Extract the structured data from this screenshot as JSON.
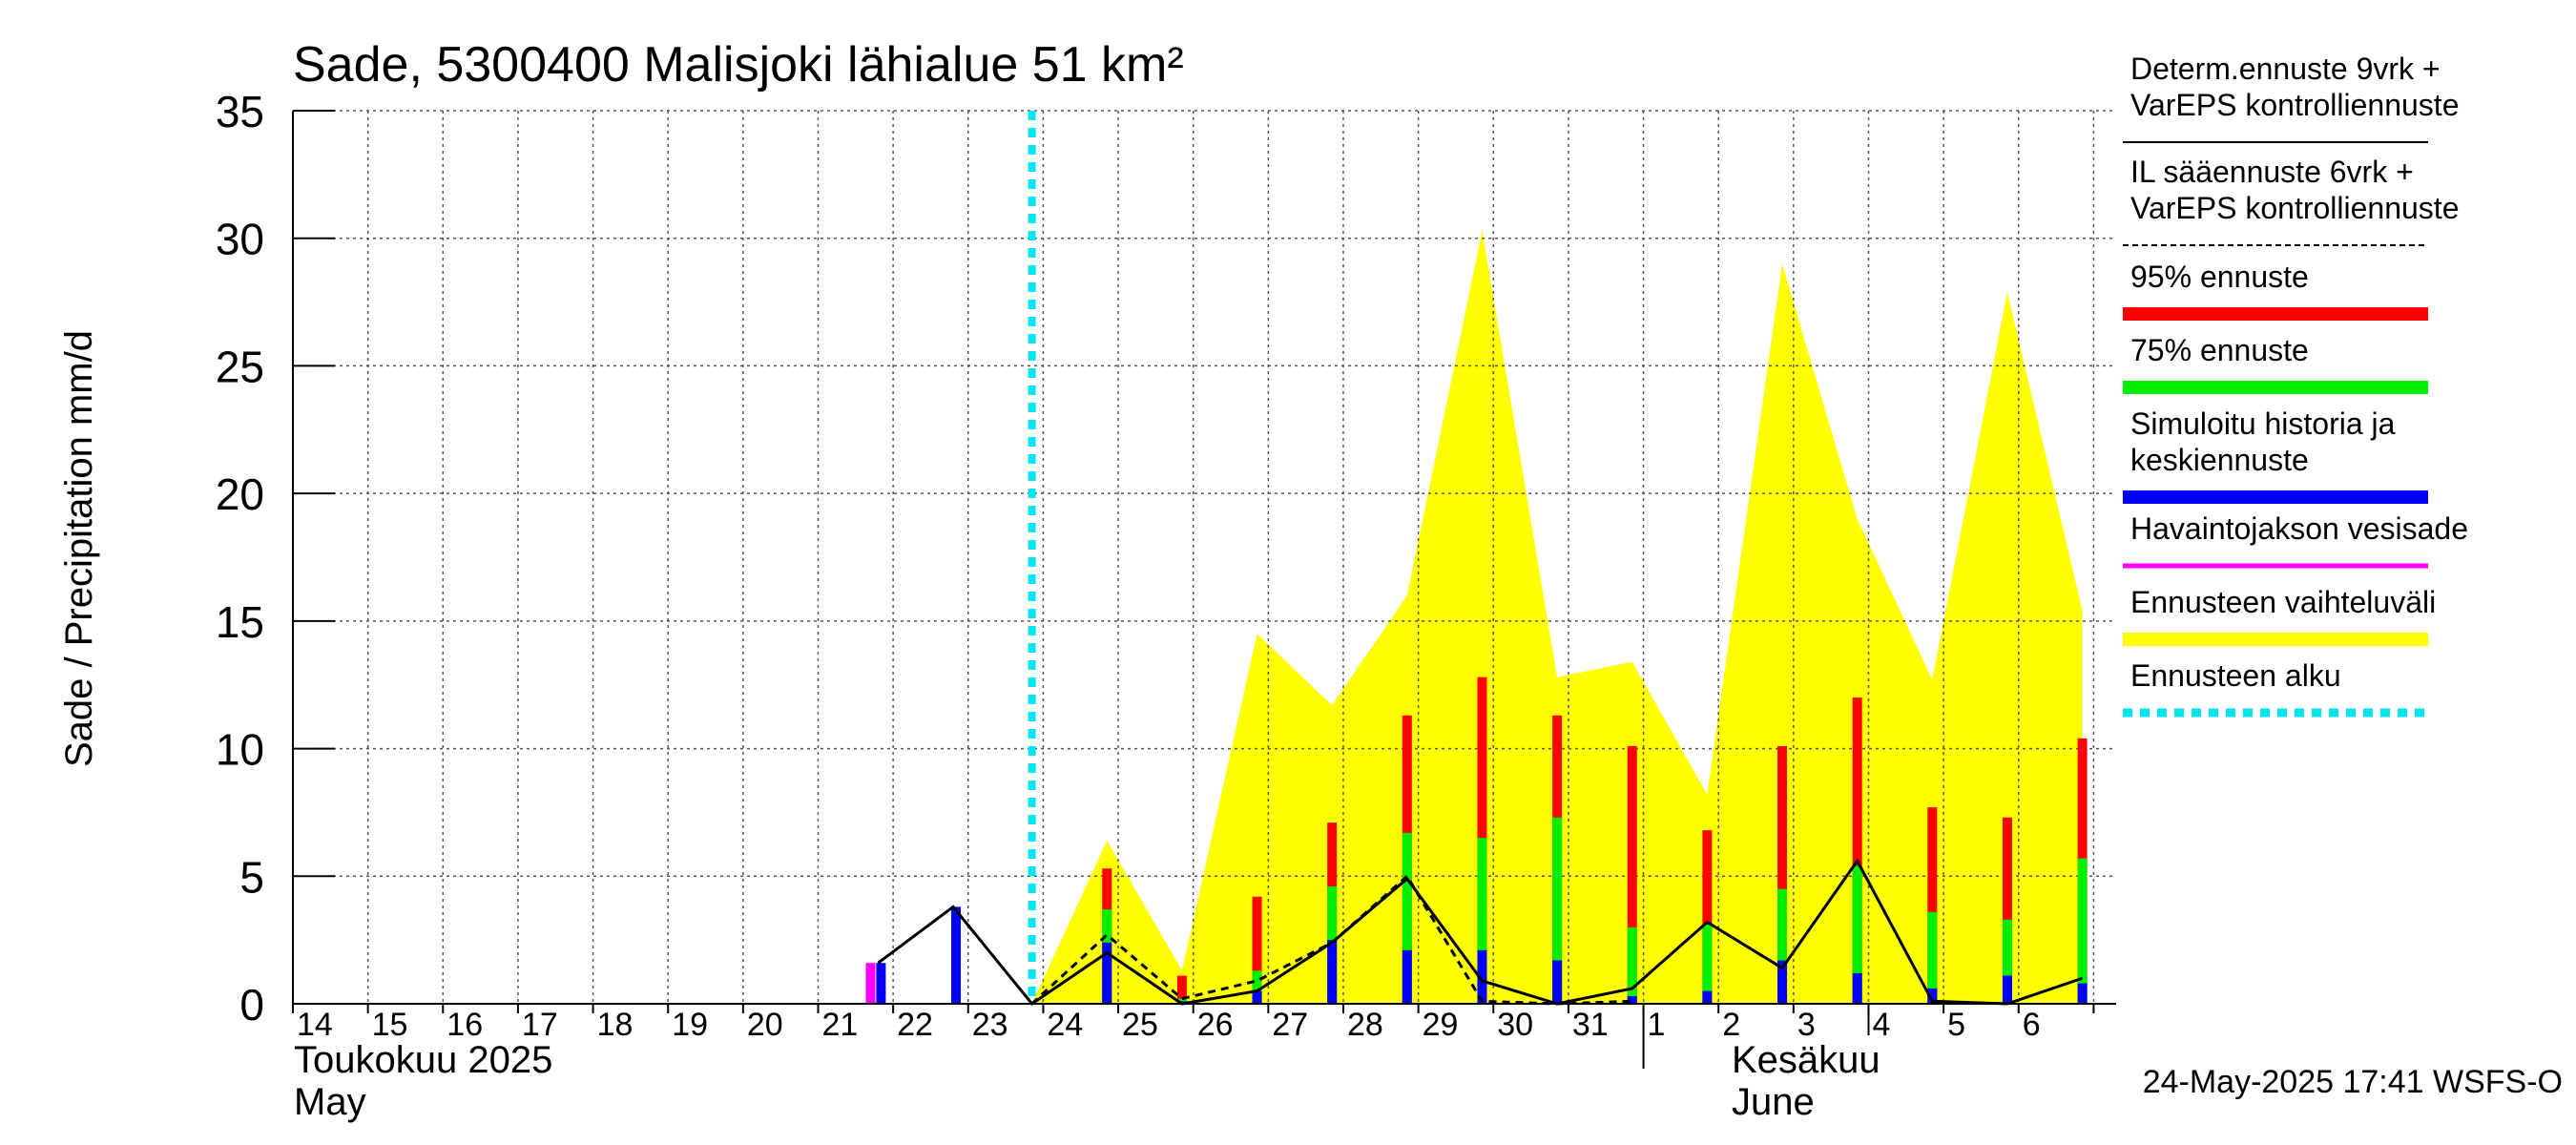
{
  "chart_data": {
    "type": "bar",
    "title": "Sade, 5300400 Malisjoki lähialue 51 km²",
    "ylabel": "Sade / Precipitation   mm/d",
    "ylim": [
      0,
      35
    ],
    "y_ticks": [
      0,
      5,
      10,
      15,
      20,
      25,
      30,
      35
    ],
    "grid": true,
    "legend_position": "right",
    "x_day_labels": [
      "14",
      "15",
      "16",
      "17",
      "18",
      "19",
      "20",
      "21",
      "22",
      "23",
      "24",
      "25",
      "26",
      "27",
      "28",
      "29",
      "30",
      "31",
      "1",
      "2",
      "3",
      "4",
      "5",
      "6"
    ],
    "month_labels": [
      {
        "fi": "Toukokuu  2025",
        "en": "May"
      },
      {
        "fi": "Kesäkuu",
        "en": "June"
      }
    ],
    "timestamp": "24-May-2025 17:41 WSFS-O",
    "colors": {
      "p95": "#ff0000",
      "p75": "#00ee00",
      "median": "#0000ff",
      "observed": "#ff00ff",
      "range": "#ffff00",
      "forecast_start": "#00e5ee",
      "determ": "#000000"
    },
    "legend": [
      {
        "label": "Determ.ennuste 9vrk +\nVarEPS kontrolliennuste",
        "style": "solid-thin",
        "color": "#000000"
      },
      {
        "label": "IL sääennuste 6vrk  +\n  VarEPS kontrolliennuste",
        "style": "dashed-thin",
        "color": "#000000"
      },
      {
        "label": "95% ennuste",
        "style": "thick",
        "color": "#ff0000"
      },
      {
        "label": "75% ennuste",
        "style": "thick",
        "color": "#00ee00"
      },
      {
        "label": "Simuloitu historia ja\nkeskiennuste",
        "style": "thick",
        "color": "#0000ff"
      },
      {
        "label": "Havaintojakson vesisade",
        "style": "medium",
        "color": "#ff00ff"
      },
      {
        "label": "Ennusteen vaihteluväli",
        "style": "thick",
        "color": "#ffff00"
      },
      {
        "label": "Ennusteen alku",
        "style": "dotted-thick",
        "color": "#00e5ee"
      }
    ],
    "forecast_start_day": 23.85,
    "observed_bars": [
      {
        "day": 21.75,
        "value": 1.6
      }
    ],
    "historical_bars": [
      {
        "day": 21.8,
        "value": 1.6
      },
      {
        "day": 22.8,
        "value": 3.8
      }
    ],
    "forecast_bars": [
      {
        "day": 24.85,
        "p95": 5.3,
        "p75": 3.7,
        "median": 2.4
      },
      {
        "day": 25.85,
        "p95": 1.1,
        "p75": 0.2,
        "median": 0.1
      },
      {
        "day": 26.85,
        "p95": 4.2,
        "p75": 1.3,
        "median": 0.5
      },
      {
        "day": 27.85,
        "p95": 7.1,
        "p75": 4.6,
        "median": 2.5
      },
      {
        "day": 28.85,
        "p95": 11.3,
        "p75": 6.7,
        "median": 2.1
      },
      {
        "day": 29.85,
        "p95": 12.8,
        "p75": 6.5,
        "median": 2.1
      },
      {
        "day": 30.85,
        "p95": 11.3,
        "p75": 7.3,
        "median": 1.7
      },
      {
        "day": 31.85,
        "p95": 10.1,
        "p75": 3.0,
        "median": 0.3
      },
      {
        "day": 32.85,
        "p95": 6.8,
        "p75": 3.1,
        "median": 0.5
      },
      {
        "day": 33.85,
        "p95": 10.1,
        "p75": 4.5,
        "median": 1.7
      },
      {
        "day": 34.85,
        "p95": 12.0,
        "p75": 5.4,
        "median": 1.2
      },
      {
        "day": 35.85,
        "p95": 7.7,
        "p75": 3.6,
        "median": 0.6
      },
      {
        "day": 36.85,
        "p95": 7.3,
        "p75": 3.3,
        "median": 1.1
      },
      {
        "day": 37.85,
        "p95": 10.4,
        "p75": 5.7,
        "median": 0.8
      }
    ],
    "range_upper": [
      {
        "day": 23.85,
        "value": 0
      },
      {
        "day": 24.85,
        "value": 6.4
      },
      {
        "day": 25.85,
        "value": 1.3
      },
      {
        "day": 26.85,
        "value": 14.5
      },
      {
        "day": 27.85,
        "value": 11.7
      },
      {
        "day": 28.85,
        "value": 16.0
      },
      {
        "day": 29.85,
        "value": 30.3
      },
      {
        "day": 30.85,
        "value": 12.8
      },
      {
        "day": 31.85,
        "value": 13.4
      },
      {
        "day": 32.85,
        "value": 8.2
      },
      {
        "day": 33.85,
        "value": 29.0
      },
      {
        "day": 34.85,
        "value": 19.0
      },
      {
        "day": 35.85,
        "value": 12.7
      },
      {
        "day": 36.85,
        "value": 27.9
      },
      {
        "day": 37.85,
        "value": 15.4
      }
    ],
    "determ_line": [
      {
        "day": 21.8,
        "value": 1.6
      },
      {
        "day": 22.8,
        "value": 3.8
      },
      {
        "day": 23.85,
        "value": 0
      },
      {
        "day": 24.85,
        "value": 2.0
      },
      {
        "day": 25.85,
        "value": 0
      },
      {
        "day": 26.85,
        "value": 0.5
      },
      {
        "day": 27.85,
        "value": 2.4
      },
      {
        "day": 28.85,
        "value": 4.9
      },
      {
        "day": 29.85,
        "value": 0.9
      },
      {
        "day": 30.85,
        "value": 0
      },
      {
        "day": 31.85,
        "value": 0.6
      },
      {
        "day": 32.85,
        "value": 3.2
      },
      {
        "day": 33.85,
        "value": 1.4
      },
      {
        "day": 34.85,
        "value": 5.6
      },
      {
        "day": 35.85,
        "value": 0.1
      },
      {
        "day": 36.85,
        "value": 0
      },
      {
        "day": 37.85,
        "value": 1.0
      }
    ],
    "il_dashed_line": [
      {
        "day": 23.85,
        "value": 0
      },
      {
        "day": 24.85,
        "value": 2.7
      },
      {
        "day": 25.85,
        "value": 0.2
      },
      {
        "day": 26.85,
        "value": 0.9
      },
      {
        "day": 27.85,
        "value": 2.4
      },
      {
        "day": 28.85,
        "value": 5.0
      },
      {
        "day": 29.85,
        "value": 0.1
      },
      {
        "day": 30.85,
        "value": 0
      },
      {
        "day": 31.85,
        "value": 0.1
      }
    ]
  }
}
